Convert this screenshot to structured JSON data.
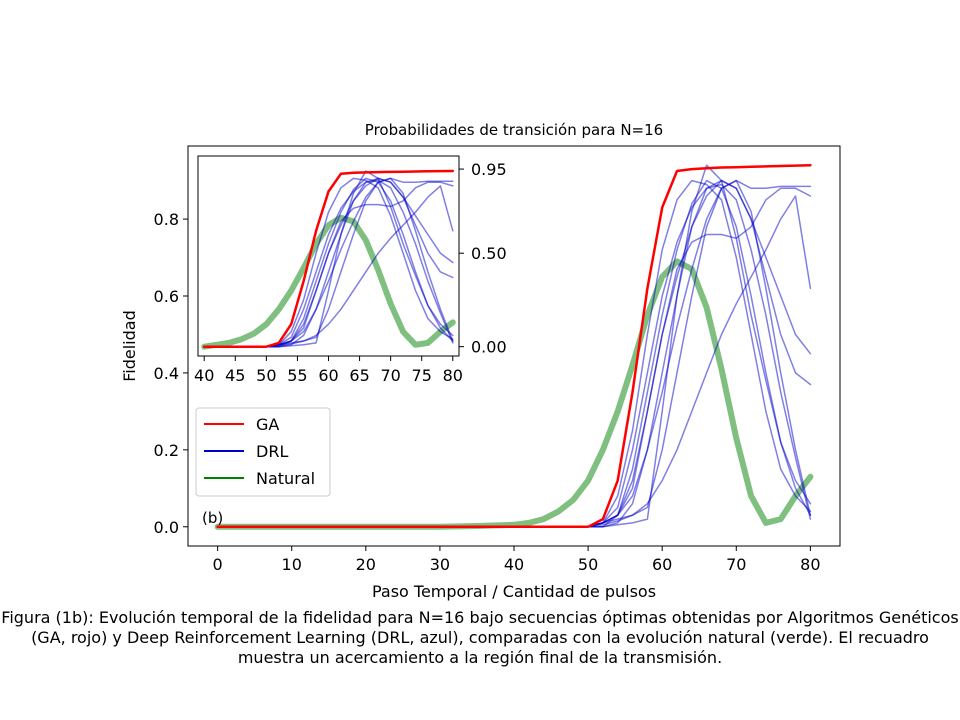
{
  "chart_data": [
    {
      "type": "line",
      "title": "Probabilidades de transición para N=16",
      "xlabel": "Paso Temporal / Cantidad de pulsos",
      "ylabel": "Fidelidad",
      "xlim": [
        -4,
        84
      ],
      "ylim": [
        -0.05,
        0.99
      ],
      "xticks": [
        0,
        10,
        20,
        30,
        40,
        50,
        60,
        70,
        80
      ],
      "yticks": [
        0.0,
        0.2,
        0.4,
        0.6,
        0.8
      ],
      "ytick_labels": [
        "0.0",
        "0.2",
        "0.4",
        "0.6",
        "0.8"
      ],
      "panel_label": "(b)",
      "grid": false,
      "legend": {
        "position": "center-left",
        "entries": [
          {
            "label": "GA",
            "color": "#ff0000"
          },
          {
            "label": "DRL",
            "color": "#0000cc"
          },
          {
            "label": "Natural",
            "color": "#008000"
          }
        ]
      },
      "x": [
        0,
        5,
        10,
        15,
        20,
        25,
        30,
        35,
        40,
        42,
        44,
        46,
        48,
        50,
        52,
        54,
        56,
        58,
        60,
        62,
        64,
        66,
        68,
        70,
        72,
        74,
        76,
        78,
        80
      ],
      "series": [
        {
          "name": "Natural",
          "role": "natural",
          "color": "#008000",
          "values": [
            0,
            0,
            0,
            0,
            0,
            0,
            0,
            0.002,
            0.005,
            0.01,
            0.02,
            0.04,
            0.07,
            0.12,
            0.2,
            0.3,
            0.42,
            0.55,
            0.65,
            0.69,
            0.67,
            0.57,
            0.41,
            0.23,
            0.08,
            0.01,
            0.02,
            0.08,
            0.13
          ]
        },
        {
          "name": "GA",
          "role": "ga",
          "color": "#ff0000",
          "values": [
            0,
            0,
            0,
            0,
            0,
            0,
            0,
            0,
            0,
            0,
            0,
            0,
            0,
            0,
            0.02,
            0.12,
            0.35,
            0.62,
            0.83,
            0.925,
            0.93,
            0.932,
            0.934,
            0.935,
            0.936,
            0.937,
            0.938,
            0.939,
            0.94
          ]
        },
        {
          "name": "DRL",
          "role": "drl",
          "color": "#0000cc",
          "values": [
            0,
            0,
            0,
            0,
            0,
            0,
            0,
            0,
            0,
            0,
            0,
            0,
            0,
            0,
            0.01,
            0.08,
            0.25,
            0.5,
            0.72,
            0.85,
            0.9,
            0.89,
            0.85,
            0.7,
            0.5,
            0.3,
            0.15,
            0.08,
            0.04
          ]
        },
        {
          "name": "",
          "role": "drl",
          "color": "#0000cc",
          "values": [
            0,
            0,
            0,
            0,
            0,
            0,
            0,
            0,
            0,
            0,
            0,
            0,
            0,
            0,
            0,
            0.03,
            0.15,
            0.35,
            0.55,
            0.72,
            0.84,
            0.9,
            0.88,
            0.78,
            0.6,
            0.4,
            0.22,
            0.1,
            0.03
          ]
        },
        {
          "name": "",
          "role": "drl",
          "color": "#0000cc",
          "values": [
            0,
            0,
            0,
            0,
            0,
            0,
            0,
            0,
            0,
            0,
            0,
            0,
            0,
            0,
            0,
            0.01,
            0.06,
            0.2,
            0.4,
            0.6,
            0.78,
            0.88,
            0.89,
            0.85,
            0.72,
            0.55,
            0.35,
            0.18,
            0.02
          ]
        },
        {
          "name": "",
          "role": "drl",
          "color": "#0000cc",
          "values": [
            0,
            0,
            0,
            0,
            0,
            0,
            0,
            0,
            0,
            0,
            0,
            0,
            0,
            0,
            0.01,
            0.05,
            0.2,
            0.4,
            0.6,
            0.74,
            0.83,
            0.88,
            0.9,
            0.88,
            0.8,
            0.7,
            0.6,
            0.5,
            0.45
          ]
        },
        {
          "name": "",
          "role": "drl",
          "color": "#0000cc",
          "values": [
            0,
            0,
            0,
            0,
            0,
            0,
            0,
            0,
            0,
            0,
            0,
            0,
            0,
            0,
            0.01,
            0.03,
            0.1,
            0.3,
            0.5,
            0.65,
            0.78,
            0.86,
            0.9,
            0.88,
            0.8,
            0.65,
            0.5,
            0.4,
            0.37
          ]
        },
        {
          "name": "",
          "role": "drl",
          "color": "#0000cc",
          "values": [
            0,
            0,
            0,
            0,
            0,
            0,
            0,
            0,
            0,
            0,
            0,
            0,
            0,
            0,
            0.01,
            0.02,
            0.03,
            0.05,
            0.2,
            0.4,
            0.6,
            0.78,
            0.88,
            0.9,
            0.88,
            0.88,
            0.885,
            0.885,
            0.885
          ]
        },
        {
          "name": "",
          "role": "drl",
          "color": "#0000cc",
          "values": [
            0,
            0,
            0,
            0,
            0,
            0,
            0,
            0,
            0,
            0,
            0,
            0,
            0,
            0,
            0.01,
            0.03,
            0.12,
            0.3,
            0.5,
            0.67,
            0.74,
            0.76,
            0.76,
            0.75,
            0.78,
            0.85,
            0.88,
            0.88,
            0.86
          ]
        },
        {
          "name": "",
          "role": "drl",
          "color": "#0000cc",
          "values": [
            0,
            0,
            0,
            0,
            0,
            0,
            0,
            0,
            0,
            0,
            0,
            0,
            0,
            0,
            0.005,
            0.015,
            0.03,
            0.06,
            0.12,
            0.2,
            0.3,
            0.4,
            0.5,
            0.58,
            0.65,
            0.72,
            0.8,
            0.86,
            0.62
          ]
        },
        {
          "name": "",
          "role": "drl",
          "color": "#0000cc",
          "values": [
            0,
            0,
            0,
            0,
            0,
            0,
            0,
            0,
            0,
            0,
            0,
            0,
            0,
            0,
            0,
            0.005,
            0.01,
            0.02,
            0.3,
            0.6,
            0.82,
            0.94,
            0.9,
            0.75,
            0.55,
            0.38,
            0.22,
            0.12,
            0.06
          ]
        },
        {
          "name": "",
          "role": "drl",
          "color": "#0000cc",
          "values": [
            0,
            0,
            0,
            0,
            0,
            0,
            0,
            0,
            0,
            0,
            0,
            0,
            0,
            0,
            0.01,
            0.03,
            0.08,
            0.2,
            0.35,
            0.52,
            0.67,
            0.8,
            0.88,
            0.9,
            0.82,
            0.62,
            0.4,
            0.2,
            0.03
          ]
        }
      ]
    },
    {
      "type": "line",
      "role": "inset",
      "xlim": [
        39,
        81
      ],
      "ylim": [
        -0.05,
        1.02
      ],
      "xticks": [
        40,
        45,
        50,
        55,
        60,
        65,
        70,
        75,
        80
      ],
      "yticks_right": [
        0.0,
        0.5,
        0.95
      ],
      "ytick_labels_right": [
        "0.00",
        "0.50",
        "0.95"
      ],
      "x": [
        40,
        42,
        44,
        46,
        48,
        50,
        52,
        54,
        56,
        58,
        60,
        62,
        64,
        66,
        68,
        70,
        72,
        74,
        76,
        78,
        80
      ],
      "series": [
        {
          "name": "Natural",
          "role": "natural",
          "color": "#008000",
          "values": [
            0,
            0.01,
            0.02,
            0.04,
            0.07,
            0.12,
            0.2,
            0.3,
            0.42,
            0.55,
            0.65,
            0.69,
            0.67,
            0.57,
            0.41,
            0.23,
            0.08,
            0.01,
            0.02,
            0.08,
            0.13
          ]
        },
        {
          "name": "GA",
          "role": "ga",
          "color": "#ff0000",
          "values": [
            0,
            0,
            0,
            0,
            0,
            0,
            0.02,
            0.12,
            0.35,
            0.62,
            0.83,
            0.925,
            0.93,
            0.932,
            0.934,
            0.935,
            0.936,
            0.937,
            0.938,
            0.939,
            0.94
          ]
        },
        {
          "name": "DRL",
          "role": "drl",
          "color": "#0000cc",
          "values": [
            0,
            0,
            0,
            0,
            0,
            0,
            0.01,
            0.08,
            0.25,
            0.5,
            0.72,
            0.85,
            0.9,
            0.89,
            0.85,
            0.7,
            0.5,
            0.3,
            0.15,
            0.08,
            0.04
          ]
        },
        {
          "name": "",
          "role": "drl",
          "color": "#0000cc",
          "values": [
            0,
            0,
            0,
            0,
            0,
            0,
            0,
            0.03,
            0.15,
            0.35,
            0.55,
            0.72,
            0.84,
            0.9,
            0.88,
            0.78,
            0.6,
            0.4,
            0.22,
            0.1,
            0.03
          ]
        },
        {
          "name": "",
          "role": "drl",
          "color": "#0000cc",
          "values": [
            0,
            0,
            0,
            0,
            0,
            0,
            0,
            0.01,
            0.06,
            0.2,
            0.4,
            0.6,
            0.78,
            0.88,
            0.89,
            0.85,
            0.72,
            0.55,
            0.35,
            0.18,
            0.02
          ]
        },
        {
          "name": "",
          "role": "drl",
          "color": "#0000cc",
          "values": [
            0,
            0,
            0,
            0,
            0,
            0,
            0.01,
            0.05,
            0.2,
            0.4,
            0.6,
            0.74,
            0.83,
            0.88,
            0.9,
            0.88,
            0.8,
            0.7,
            0.6,
            0.5,
            0.45
          ]
        },
        {
          "name": "",
          "role": "drl",
          "color": "#0000cc",
          "values": [
            0,
            0,
            0,
            0,
            0,
            0,
            0.01,
            0.03,
            0.1,
            0.3,
            0.5,
            0.65,
            0.78,
            0.86,
            0.9,
            0.88,
            0.8,
            0.65,
            0.5,
            0.4,
            0.37
          ]
        },
        {
          "name": "",
          "role": "drl",
          "color": "#0000cc",
          "values": [
            0,
            0,
            0,
            0,
            0,
            0,
            0.01,
            0.02,
            0.03,
            0.05,
            0.2,
            0.4,
            0.6,
            0.78,
            0.88,
            0.9,
            0.88,
            0.88,
            0.885,
            0.885,
            0.885
          ]
        },
        {
          "name": "",
          "role": "drl",
          "color": "#0000cc",
          "values": [
            0,
            0,
            0,
            0,
            0,
            0,
            0.01,
            0.03,
            0.12,
            0.3,
            0.5,
            0.67,
            0.74,
            0.76,
            0.76,
            0.75,
            0.78,
            0.85,
            0.88,
            0.88,
            0.86
          ]
        },
        {
          "name": "",
          "role": "drl",
          "color": "#0000cc",
          "values": [
            0,
            0,
            0,
            0,
            0,
            0,
            0.005,
            0.015,
            0.03,
            0.06,
            0.12,
            0.2,
            0.3,
            0.4,
            0.5,
            0.58,
            0.65,
            0.72,
            0.8,
            0.86,
            0.62
          ]
        },
        {
          "name": "",
          "role": "drl",
          "color": "#0000cc",
          "values": [
            0,
            0,
            0,
            0,
            0,
            0,
            0,
            0.005,
            0.01,
            0.02,
            0.3,
            0.6,
            0.82,
            0.94,
            0.9,
            0.75,
            0.55,
            0.38,
            0.22,
            0.12,
            0.06
          ]
        },
        {
          "name": "",
          "role": "drl",
          "color": "#0000cc",
          "values": [
            0,
            0,
            0,
            0,
            0,
            0,
            0.01,
            0.03,
            0.08,
            0.2,
            0.35,
            0.52,
            0.67,
            0.8,
            0.88,
            0.9,
            0.82,
            0.62,
            0.4,
            0.2,
            0.03
          ]
        }
      ]
    }
  ],
  "caption": "Figura (1b): Evolución temporal de la fidelidad para N=16 bajo secuencias óptimas obtenidas por Algoritmos Genéticos (GA, rojo) y Deep Reinforcement Learning (DRL, azul), comparadas con la evolución natural (verde). El recuadro muestra un acercamiento a la región final de la transmisión."
}
